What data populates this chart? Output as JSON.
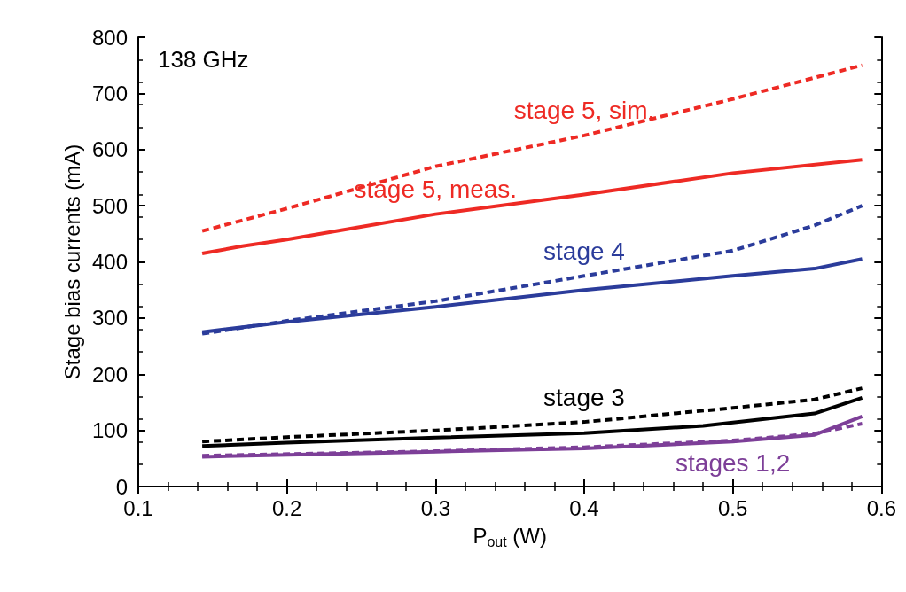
{
  "chart_data": {
    "type": "line",
    "xlabel": "P$_{out}$ (W)",
    "ylabel": "Stage bias currents (mA)",
    "annotations": [
      "138 GHz"
    ],
    "xlim": [
      0.1,
      0.6
    ],
    "xticks": [
      0.1,
      0.2,
      0.3,
      0.4,
      0.5,
      0.6
    ],
    "ylim": [
      0,
      800
    ],
    "yticks": [
      0,
      100,
      200,
      300,
      400,
      500,
      600,
      700,
      800
    ],
    "grid": false,
    "legend": false,
    "marker": "none",
    "series": [
      {
        "name": "stage 5, sim.",
        "color": "#ee2a24",
        "line_style": "dashed",
        "x": [
          0.143,
          0.2,
          0.3,
          0.4,
          0.5,
          0.587
        ],
        "values": [
          455,
          495,
          570,
          625,
          690,
          750
        ]
      },
      {
        "name": "stage 5, meas.",
        "color": "#ee2a24",
        "line_style": "solid",
        "x": [
          0.143,
          0.17,
          0.2,
          0.3,
          0.4,
          0.5,
          0.587
        ],
        "values": [
          415,
          428,
          440,
          485,
          520,
          558,
          582
        ]
      },
      {
        "color": "#2b3c9b",
        "line_style": "solid",
        "x": [
          0.143,
          0.2,
          0.3,
          0.4,
          0.5,
          0.555,
          0.587
        ],
        "values": [
          275,
          293,
          320,
          350,
          375,
          388,
          405
        ]
      },
      {
        "name": "stage 4",
        "color": "#2b3c9b",
        "line_style": "dashed",
        "x": [
          0.143,
          0.2,
          0.3,
          0.4,
          0.5,
          0.555,
          0.587
        ],
        "values": [
          272,
          295,
          330,
          375,
          420,
          465,
          500
        ]
      },
      {
        "color": "#000000",
        "line_style": "solid",
        "x": [
          0.143,
          0.2,
          0.3,
          0.4,
          0.48,
          0.555,
          0.587
        ],
        "values": [
          72,
          78,
          87,
          95,
          108,
          130,
          158
        ]
      },
      {
        "name": "stage 3",
        "color": "#000000",
        "line_style": "dashed",
        "x": [
          0.143,
          0.2,
          0.3,
          0.4,
          0.5,
          0.555,
          0.587
        ],
        "values": [
          80,
          88,
          100,
          115,
          140,
          155,
          175
        ]
      },
      {
        "name": "stages 1,2",
        "color": "#7d3f98",
        "line_style": "solid",
        "x": [
          0.143,
          0.3,
          0.4,
          0.5,
          0.555,
          0.587
        ],
        "values": [
          53,
          62,
          68,
          80,
          92,
          125
        ]
      },
      {
        "color": "#7d3f98",
        "line_style": "dashed",
        "x": [
          0.143,
          0.3,
          0.4,
          0.5,
          0.555,
          0.587
        ],
        "values": [
          55,
          63,
          70,
          82,
          94,
          112
        ]
      }
    ]
  }
}
